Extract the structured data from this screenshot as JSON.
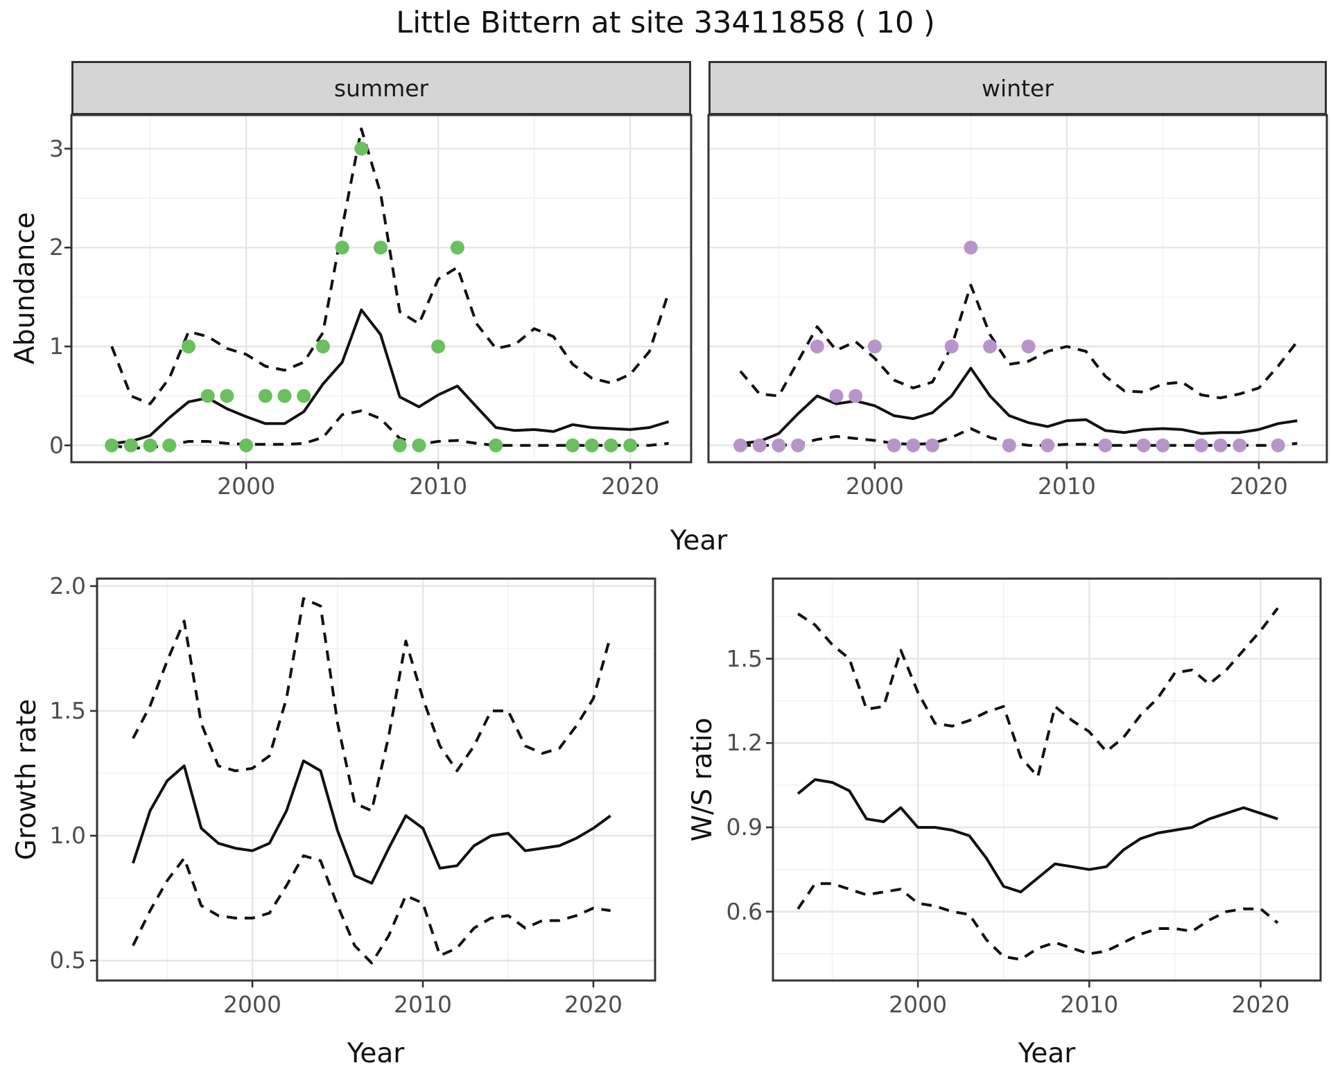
{
  "title": "Little Bittern at site 33411858 ( 10 )",
  "colors": {
    "summer_point": "#6abf5f",
    "winter_point": "#b795cb",
    "line": "#111111",
    "tick_text": "#4d4d4d",
    "strip_background": "#d5d5d5",
    "panel_border": "#333333",
    "grid_major": "#e5e5e5",
    "grid_minor": "#f2f2f2"
  },
  "chart_data": [
    {
      "type": "line",
      "facet": "summer",
      "xlabel": "Year",
      "ylabel": "Abundance",
      "x": [
        1993,
        1994,
        1995,
        1996,
        1997,
        1998,
        1999,
        2000,
        2001,
        2002,
        2003,
        2004,
        2005,
        2006,
        2007,
        2008,
        2009,
        2010,
        2011,
        2012,
        2013,
        2014,
        2015,
        2016,
        2017,
        2018,
        2019,
        2020,
        2021,
        2022
      ],
      "series": [
        {
          "name": "mean",
          "style": "solid",
          "values": [
            0.02,
            0.04,
            0.1,
            0.28,
            0.44,
            0.48,
            0.37,
            0.29,
            0.22,
            0.22,
            0.34,
            0.62,
            0.84,
            1.37,
            1.12,
            0.49,
            0.39,
            0.51,
            0.6,
            0.39,
            0.18,
            0.15,
            0.16,
            0.14,
            0.21,
            0.18,
            0.17,
            0.16,
            0.18,
            0.24
          ]
        },
        {
          "name": "upper_ci",
          "style": "dashed",
          "values": [
            1.0,
            0.5,
            0.42,
            0.68,
            1.15,
            1.1,
            0.98,
            0.92,
            0.8,
            0.76,
            0.84,
            1.14,
            2.2,
            3.2,
            2.55,
            1.35,
            1.23,
            1.68,
            1.8,
            1.23,
            0.98,
            1.02,
            1.18,
            1.1,
            0.82,
            0.68,
            0.63,
            0.72,
            0.95,
            1.55
          ]
        },
        {
          "name": "lower_ci",
          "style": "dashed",
          "values": [
            0.0,
            -0.03,
            -0.02,
            0.0,
            0.04,
            0.04,
            0.02,
            0.01,
            0.01,
            0.01,
            0.02,
            0.08,
            0.31,
            0.35,
            0.27,
            0.07,
            0.01,
            0.04,
            0.05,
            0.02,
            0.0,
            0.0,
            0.0,
            0.0,
            0.0,
            0.0,
            0.0,
            0.0,
            0.0,
            0.02
          ]
        }
      ],
      "points": {
        "name": "observations",
        "color": "#6abf5f",
        "x": [
          1993,
          1994,
          1995,
          1996,
          1997,
          1998,
          1999,
          2000,
          2001,
          2002,
          2003,
          2004,
          2005,
          2006,
          2007,
          2008,
          2009,
          2010,
          2011,
          2013,
          2017,
          2018,
          2019,
          2020
        ],
        "y": [
          0,
          0,
          0,
          0,
          1,
          0.5,
          0.5,
          0,
          0.5,
          0.5,
          0.5,
          1,
          2,
          3,
          2,
          0,
          0,
          1,
          2,
          0,
          0,
          0,
          0,
          0
        ]
      },
      "xticks": [
        2000,
        2010,
        2020
      ],
      "xtick_labels": [
        "2000",
        "2010",
        "2020"
      ],
      "yticks": [
        0,
        1,
        2,
        3
      ],
      "ytick_labels": [
        "0",
        "1",
        "2",
        "3"
      ],
      "xlim": [
        1990.9,
        2023.17
      ],
      "ylim": [
        -0.17,
        3.34
      ],
      "grid": true,
      "legend": "none"
    },
    {
      "type": "line",
      "facet": "winter",
      "xlabel": "Year",
      "ylabel": "Abundance",
      "x": [
        1993,
        1994,
        1995,
        1996,
        1997,
        1998,
        1999,
        2000,
        2001,
        2002,
        2003,
        2004,
        2005,
        2006,
        2007,
        2008,
        2009,
        2010,
        2011,
        2012,
        2013,
        2014,
        2015,
        2016,
        2017,
        2018,
        2019,
        2020,
        2021,
        2022
      ],
      "series": [
        {
          "name": "mean",
          "style": "solid",
          "values": [
            0.02,
            0.04,
            0.12,
            0.32,
            0.5,
            0.42,
            0.45,
            0.4,
            0.3,
            0.27,
            0.33,
            0.5,
            0.78,
            0.5,
            0.3,
            0.23,
            0.19,
            0.25,
            0.26,
            0.15,
            0.13,
            0.16,
            0.17,
            0.16,
            0.12,
            0.13,
            0.13,
            0.16,
            0.22,
            0.25
          ]
        },
        {
          "name": "upper_ci",
          "style": "dashed",
          "values": [
            0.75,
            0.52,
            0.5,
            0.85,
            1.2,
            0.96,
            1.05,
            0.88,
            0.66,
            0.58,
            0.64,
            1.0,
            1.62,
            1.12,
            0.82,
            0.85,
            0.95,
            1.0,
            0.95,
            0.7,
            0.55,
            0.54,
            0.62,
            0.64,
            0.51,
            0.48,
            0.52,
            0.58,
            0.8,
            1.05
          ]
        },
        {
          "name": "lower_ci",
          "style": "dashed",
          "values": [
            0.0,
            0.0,
            0.0,
            0.01,
            0.06,
            0.09,
            0.07,
            0.05,
            0.02,
            0.01,
            0.02,
            0.08,
            0.17,
            0.08,
            0.03,
            0.0,
            0.0,
            0.01,
            0.01,
            0.0,
            0.0,
            0.0,
            0.0,
            0.0,
            0.0,
            0.0,
            0.0,
            0.0,
            0.0,
            0.02
          ]
        }
      ],
      "points": {
        "name": "observations",
        "color": "#b795cb",
        "x": [
          1993,
          1994,
          1995,
          1996,
          1997,
          1998,
          1999,
          2000,
          2001,
          2002,
          2003,
          2004,
          2005,
          2006,
          2007,
          2008,
          2009,
          2012,
          2014,
          2015,
          2017,
          2018,
          2019,
          2021
        ],
        "y": [
          0,
          0,
          0,
          0,
          1,
          0.5,
          0.5,
          1,
          0,
          0,
          0,
          1,
          2,
          1,
          0,
          1,
          0,
          0,
          0,
          0,
          0,
          0,
          0,
          0
        ]
      },
      "xticks": [
        2000,
        2010,
        2020
      ],
      "xtick_labels": [
        "2000",
        "2010",
        "2020"
      ],
      "yticks": [
        0,
        1,
        2,
        3
      ],
      "ytick_labels": [
        "0",
        "1",
        "2",
        "3"
      ],
      "xlim": [
        1991.34,
        2023.54
      ],
      "ylim": [
        -0.17,
        3.34
      ],
      "grid": true,
      "legend": "none"
    },
    {
      "type": "line",
      "facet": "",
      "xlabel": "Year",
      "ylabel": "Growth rate",
      "x": [
        1993,
        1994,
        1995,
        1996,
        1997,
        1998,
        1999,
        2000,
        2001,
        2002,
        2003,
        2004,
        2005,
        2006,
        2007,
        2008,
        2009,
        2010,
        2011,
        2012,
        2013,
        2014,
        2015,
        2016,
        2017,
        2018,
        2019,
        2020,
        2021
      ],
      "series": [
        {
          "name": "mean",
          "style": "solid",
          "values": [
            0.89,
            1.1,
            1.22,
            1.28,
            1.03,
            0.97,
            0.95,
            0.94,
            0.97,
            1.1,
            1.3,
            1.26,
            1.02,
            0.84,
            0.81,
            0.95,
            1.08,
            1.03,
            0.87,
            0.88,
            0.96,
            1.0,
            1.01,
            0.94,
            0.95,
            0.96,
            0.99,
            1.03,
            1.08
          ]
        },
        {
          "name": "upper_ci",
          "style": "dashed",
          "values": [
            1.39,
            1.52,
            1.7,
            1.86,
            1.45,
            1.28,
            1.26,
            1.27,
            1.32,
            1.55,
            1.95,
            1.92,
            1.45,
            1.13,
            1.1,
            1.4,
            1.78,
            1.55,
            1.36,
            1.26,
            1.36,
            1.5,
            1.5,
            1.36,
            1.33,
            1.35,
            1.44,
            1.55,
            1.8
          ]
        },
        {
          "name": "lower_ci",
          "style": "dashed",
          "values": [
            0.56,
            0.7,
            0.82,
            0.91,
            0.72,
            0.68,
            0.67,
            0.67,
            0.69,
            0.8,
            0.92,
            0.9,
            0.72,
            0.56,
            0.49,
            0.6,
            0.76,
            0.73,
            0.52,
            0.55,
            0.63,
            0.67,
            0.68,
            0.63,
            0.66,
            0.66,
            0.68,
            0.71,
            0.7
          ]
        }
      ],
      "xticks": [
        2000,
        2010,
        2020
      ],
      "xtick_labels": [
        "2000",
        "2010",
        "2020"
      ],
      "yticks": [
        0.5,
        1.0,
        1.5,
        2.0
      ],
      "ytick_labels": [
        "0.5",
        "1.0",
        "1.5",
        "2.0"
      ],
      "xlim": [
        1990.89,
        2023.62
      ],
      "ylim": [
        0.42,
        2.03
      ],
      "grid": true,
      "legend": "none"
    },
    {
      "type": "line",
      "facet": "",
      "xlabel": "Year",
      "ylabel": "W/S ratio",
      "x": [
        1993,
        1994,
        1995,
        1996,
        1997,
        1998,
        1999,
        2000,
        2001,
        2002,
        2003,
        2004,
        2005,
        2006,
        2007,
        2008,
        2009,
        2010,
        2011,
        2012,
        2013,
        2014,
        2015,
        2016,
        2017,
        2018,
        2019,
        2020,
        2021
      ],
      "series": [
        {
          "name": "mean",
          "style": "solid",
          "values": [
            1.02,
            1.07,
            1.06,
            1.03,
            0.93,
            0.92,
            0.97,
            0.9,
            0.9,
            0.89,
            0.87,
            0.79,
            0.69,
            0.67,
            0.72,
            0.77,
            0.76,
            0.75,
            0.76,
            0.82,
            0.86,
            0.88,
            0.89,
            0.9,
            0.93,
            0.95,
            0.97,
            0.95,
            0.93
          ]
        },
        {
          "name": "upper_ci",
          "style": "dashed",
          "values": [
            1.66,
            1.62,
            1.55,
            1.5,
            1.32,
            1.33,
            1.53,
            1.38,
            1.27,
            1.26,
            1.28,
            1.31,
            1.33,
            1.15,
            1.08,
            1.33,
            1.28,
            1.24,
            1.17,
            1.22,
            1.3,
            1.36,
            1.45,
            1.46,
            1.41,
            1.46,
            1.53,
            1.6,
            1.68
          ]
        },
        {
          "name": "lower_ci",
          "style": "dashed",
          "values": [
            0.61,
            0.7,
            0.7,
            0.68,
            0.66,
            0.67,
            0.68,
            0.63,
            0.62,
            0.6,
            0.59,
            0.5,
            0.44,
            0.43,
            0.47,
            0.49,
            0.47,
            0.45,
            0.46,
            0.49,
            0.52,
            0.54,
            0.54,
            0.53,
            0.57,
            0.6,
            0.61,
            0.61,
            0.56
          ]
        }
      ],
      "xticks": [
        2000,
        2010,
        2020
      ],
      "xtick_labels": [
        "2000",
        "2010",
        "2020"
      ],
      "yticks": [
        0.6,
        0.9,
        1.2,
        1.5
      ],
      "ytick_labels": [
        "0.6",
        "0.9",
        "1.2",
        "1.5"
      ],
      "xlim": [
        1991.54,
        2023.5
      ],
      "ylim": [
        0.355,
        1.785
      ],
      "grid": true,
      "legend": "none"
    }
  ]
}
